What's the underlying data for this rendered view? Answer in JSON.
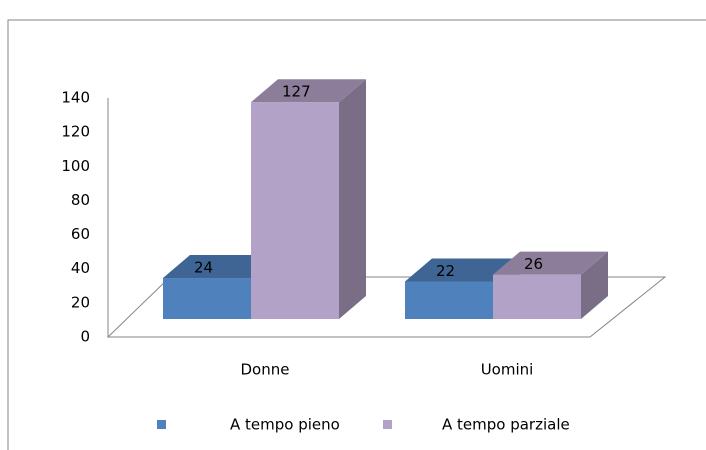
{
  "chart_data": {
    "type": "bar3d",
    "categories": [
      "Donne",
      "Uomini"
    ],
    "series": [
      {
        "name": "A tempo pieno",
        "color": "#4f81bd",
        "values": [
          24,
          22
        ]
      },
      {
        "name": "A tempo parziale",
        "color": "#b3a2c7",
        "values": [
          127,
          26
        ]
      }
    ],
    "ylim": [
      0,
      140
    ],
    "yticks": [
      0,
      20,
      40,
      60,
      80,
      100,
      120,
      140
    ],
    "grid": false,
    "legend": "bottom"
  }
}
